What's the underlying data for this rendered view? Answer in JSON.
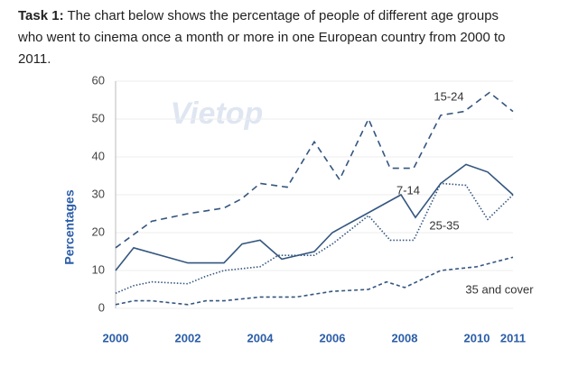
{
  "header": {
    "label": "Task 1:",
    "text": "The chart below shows the percentage of people of different age groups who went to cinema once a month or more in one European country from 2000 to 2011."
  },
  "chart_data": {
    "type": "line",
    "ylabel": "Percentages",
    "watermark": "Vietop",
    "xlim": [
      2000,
      2011
    ],
    "xticks": [
      2000,
      2002,
      2004,
      2006,
      2008,
      2010,
      2011
    ],
    "ylim": [
      0,
      60
    ],
    "yticks": [
      0,
      10,
      20,
      30,
      40,
      50,
      60
    ],
    "grid": true,
    "series": [
      {
        "name": "15-24",
        "color": "#34567f",
        "linestyle": "dashed",
        "x": [
          2000,
          2001,
          2002,
          2003,
          2003.5,
          2004,
          2004.75,
          2005.5,
          2006.2,
          2007,
          2007.6,
          2008.25,
          2009,
          2009.65,
          2010.35,
          2011
        ],
        "values": [
          16,
          23,
          25,
          26.5,
          29,
          33,
          32,
          44,
          34,
          50,
          37,
          37,
          51,
          52,
          57,
          52
        ]
      },
      {
        "name": "7-14",
        "color": "#34567f",
        "linestyle": "solid",
        "x": [
          2000,
          2000.5,
          2002,
          2003,
          2003.5,
          2004,
          2004.6,
          2005.5,
          2006,
          2007.9,
          2008.3,
          2009,
          2009.7,
          2010.3,
          2011
        ],
        "values": [
          10,
          16,
          12,
          12,
          17,
          18,
          13,
          15,
          20,
          30,
          24,
          33,
          38,
          36,
          30
        ]
      },
      {
        "name": "25-35",
        "color": "#34567f",
        "linestyle": "dotted",
        "x": [
          2000,
          2000.5,
          2001,
          2002,
          2002.5,
          2003,
          2004,
          2004.5,
          2005.5,
          2006,
          2007,
          2007.6,
          2008.25,
          2009,
          2009.7,
          2010.3,
          2011
        ],
        "values": [
          4,
          6,
          7,
          6.5,
          8.5,
          10,
          11,
          14,
          14,
          17,
          24.5,
          18,
          18,
          33,
          32.5,
          23.5,
          30
        ]
      },
      {
        "name": "35 and cover",
        "color": "#34567f",
        "linestyle": "fine-dashed",
        "x": [
          2000,
          2000.5,
          2001,
          2002,
          2002.5,
          2003,
          2004,
          2005,
          2006,
          2007,
          2007.5,
          2008,
          2009,
          2010,
          2011
        ],
        "values": [
          1,
          2,
          2,
          1,
          2,
          2,
          3,
          3,
          4.5,
          5,
          7,
          5.5,
          10,
          11,
          13.5
        ]
      }
    ]
  }
}
